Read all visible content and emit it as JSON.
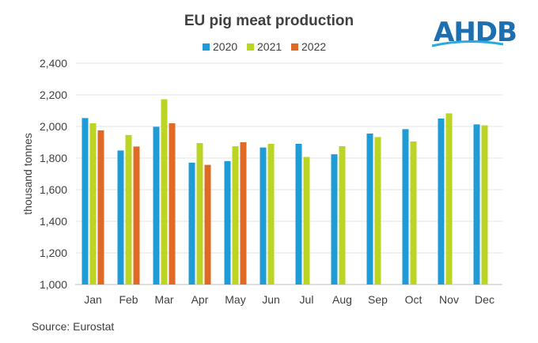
{
  "chart_data": {
    "type": "bar",
    "title": "EU pig meat production",
    "ylabel": "thousand tonnes",
    "xlabel": "",
    "categories": [
      "Jan",
      "Feb",
      "Mar",
      "Apr",
      "May",
      "Jun",
      "Jul",
      "Aug",
      "Sep",
      "Oct",
      "Nov",
      "Dec"
    ],
    "series": [
      {
        "name": "2020",
        "color": "#1f9cd6",
        "values": [
          2053,
          1848,
          1998,
          1771,
          1781,
          1867,
          1890,
          1824,
          1955,
          1983,
          2050,
          2013
        ]
      },
      {
        "name": "2021",
        "color": "#bcd524",
        "values": [
          2020,
          1946,
          2172,
          1895,
          1875,
          1890,
          1807,
          1875,
          1933,
          1905,
          2083,
          2007
        ]
      },
      {
        "name": "2022",
        "color": "#df6a26",
        "values": [
          1975,
          1873,
          2020,
          1757,
          1900,
          null,
          null,
          null,
          null,
          null,
          null,
          null
        ]
      }
    ],
    "ylim": [
      1000,
      2400
    ],
    "yticks": [
      "1,000",
      "1,200",
      "1,400",
      "1,600",
      "1,800",
      "2,000",
      "2,200",
      "2,400"
    ],
    "grid": true,
    "legend_position": "top-center"
  },
  "source": "Source: Eurostat",
  "logo": {
    "text": "AHDB",
    "color": "#1e6fb0"
  }
}
